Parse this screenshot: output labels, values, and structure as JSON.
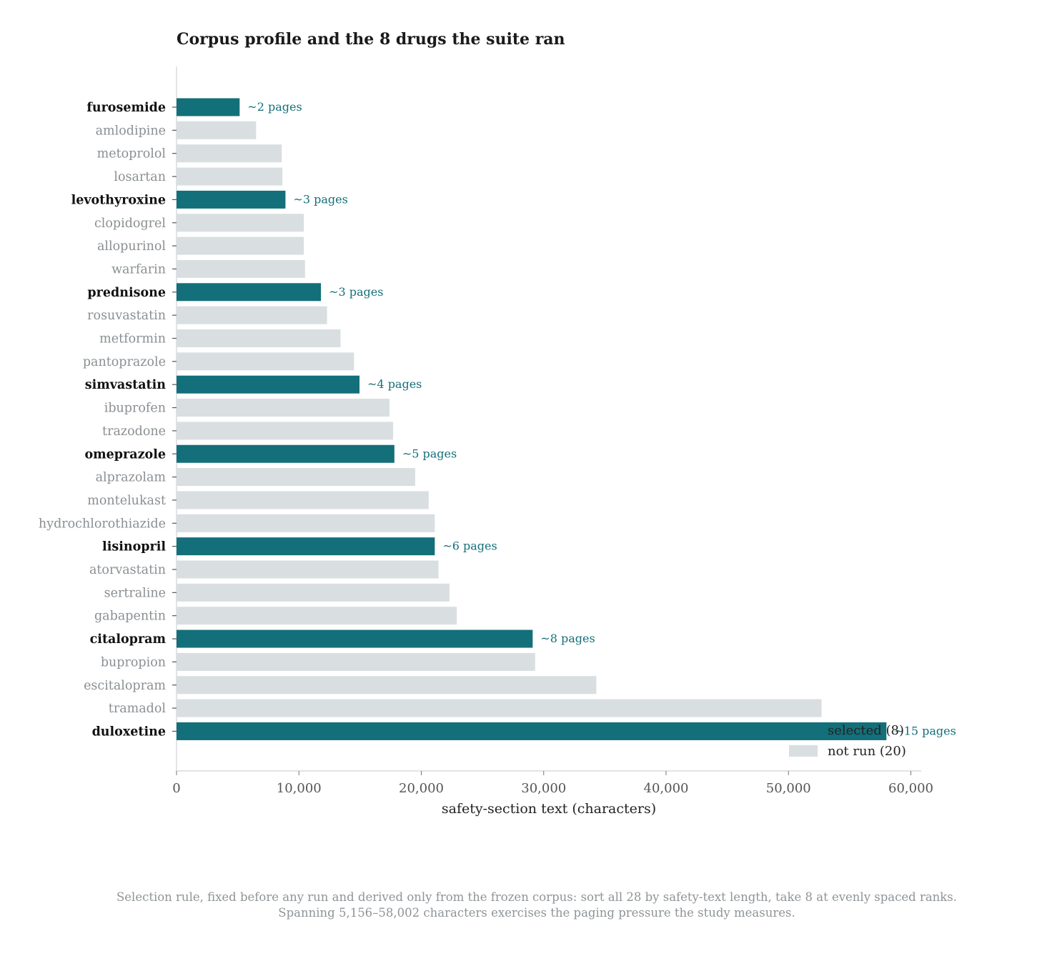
{
  "chart_data": {
    "type": "bar",
    "orientation": "horizontal",
    "title": "Corpus profile and the 8 drugs the suite ran",
    "xlabel": "safety-section text (characters)",
    "ylabel": "",
    "xlim": [
      0,
      61000
    ],
    "xticks": [
      0,
      10000,
      20000,
      30000,
      40000,
      50000,
      60000
    ],
    "xtick_labels": [
      "0",
      "10,000",
      "20,000",
      "30,000",
      "40,000",
      "50,000",
      "60,000"
    ],
    "grid": false,
    "legend_position": "lower-right",
    "colors": {
      "selected": "#136f7a",
      "not_run": "#d9dee1",
      "selected_label": "#111111",
      "not_run_label": "#8a8f93",
      "note": "#8f9497",
      "axis": "#cfd3d6",
      "tick_text": "#555555"
    },
    "legend": [
      {
        "key": "selected",
        "label": "selected (8)"
      },
      {
        "key": "not_run",
        "label": "not run (20)"
      }
    ],
    "bars": [
      {
        "name": "furosemide",
        "value": 5156,
        "selected": true,
        "annotation": "~2 pages"
      },
      {
        "name": "amlodipine",
        "value": 6500,
        "selected": false
      },
      {
        "name": "metoprolol",
        "value": 8600,
        "selected": false
      },
      {
        "name": "losartan",
        "value": 8650,
        "selected": false
      },
      {
        "name": "levothyroxine",
        "value": 8900,
        "selected": true,
        "annotation": "~3 pages"
      },
      {
        "name": "clopidogrel",
        "value": 10400,
        "selected": false
      },
      {
        "name": "allopurinol",
        "value": 10400,
        "selected": false
      },
      {
        "name": "warfarin",
        "value": 10500,
        "selected": false
      },
      {
        "name": "prednisone",
        "value": 11800,
        "selected": true,
        "annotation": "~3 pages"
      },
      {
        "name": "rosuvastatin",
        "value": 12300,
        "selected": false
      },
      {
        "name": "metformin",
        "value": 13400,
        "selected": false
      },
      {
        "name": "pantoprazole",
        "value": 14500,
        "selected": false
      },
      {
        "name": "simvastatin",
        "value": 14950,
        "selected": true,
        "annotation": "~4 pages"
      },
      {
        "name": "ibuprofen",
        "value": 17400,
        "selected": false
      },
      {
        "name": "trazodone",
        "value": 17700,
        "selected": false
      },
      {
        "name": "omeprazole",
        "value": 17800,
        "selected": true,
        "annotation": "~5 pages"
      },
      {
        "name": "alprazolam",
        "value": 19500,
        "selected": false
      },
      {
        "name": "montelukast",
        "value": 20600,
        "selected": false
      },
      {
        "name": "hydrochlorothiazide",
        "value": 21100,
        "selected": false
      },
      {
        "name": "lisinopril",
        "value": 21100,
        "selected": true,
        "annotation": "~6 pages"
      },
      {
        "name": "atorvastatin",
        "value": 21400,
        "selected": false
      },
      {
        "name": "sertraline",
        "value": 22300,
        "selected": false
      },
      {
        "name": "gabapentin",
        "value": 22900,
        "selected": false
      },
      {
        "name": "citalopram",
        "value": 29100,
        "selected": true,
        "annotation": "~8 pages"
      },
      {
        "name": "bupropion",
        "value": 29300,
        "selected": false
      },
      {
        "name": "escitalopram",
        "value": 34300,
        "selected": false
      },
      {
        "name": "tramadol",
        "value": 52700,
        "selected": false
      },
      {
        "name": "duloxetine",
        "value": 58002,
        "selected": true,
        "annotation": "~15 pages"
      }
    ]
  },
  "footnote": {
    "line1": "Selection rule, fixed before any run and derived only from the frozen corpus: sort all 28 by safety-text length, take 8 at evenly spaced ranks.",
    "line2": "Spanning 5,156–58,002 characters exercises the paging pressure the study measures."
  }
}
